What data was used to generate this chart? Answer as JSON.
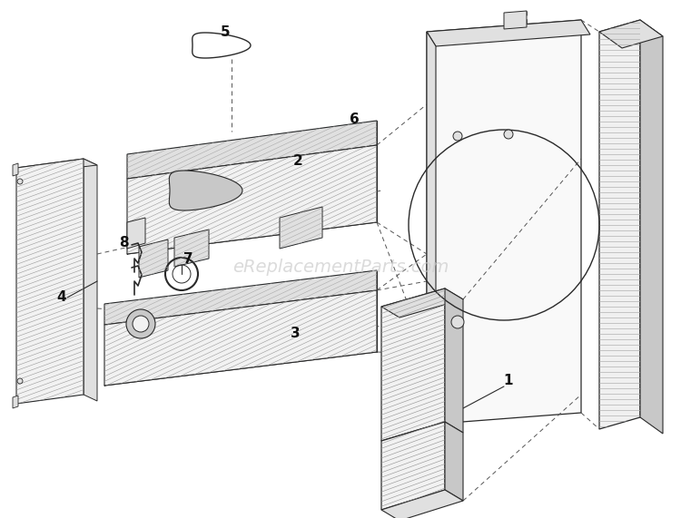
{
  "watermark": "eReplacementParts.com",
  "watermark_color": "#cccccc",
  "watermark_fontsize": 14,
  "background_color": "#ffffff",
  "fig_width": 7.5,
  "fig_height": 5.71,
  "dpi": 100,
  "line_color": "#2a2a2a",
  "hatch_color": "#555555",
  "fill_light": "#f2f2f2",
  "fill_mid": "#e0e0e0",
  "fill_dark": "#c8c8c8",
  "dashed_color": "#555555"
}
